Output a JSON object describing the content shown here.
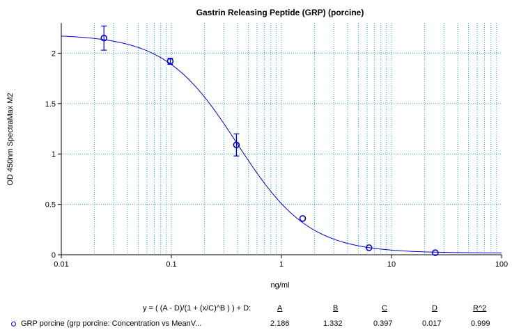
{
  "chart_data": {
    "type": "scatter",
    "title": "Gastrin Releasing Peptide (GRP) (porcine)",
    "xlabel": "ng/ml",
    "ylabel": "OD 450nm SpectraMax M2",
    "x_scale": "log",
    "xlim": [
      0.01,
      100
    ],
    "ylim": [
      0,
      2.3
    ],
    "x_ticks": [
      "0.01",
      "0.1",
      "1",
      "10",
      "100"
    ],
    "y_ticks": [
      "0",
      "0.5",
      "1",
      "1.5",
      "2"
    ],
    "grid": true,
    "series": [
      {
        "name": "GRP porcine (grp porcine: Concentration vs MeanV...",
        "color": "#0000cc",
        "x": [
          0.0244,
          0.0977,
          0.39,
          1.56,
          6.25,
          25
        ],
        "y": [
          2.15,
          1.92,
          1.09,
          0.36,
          0.07,
          0.02
        ],
        "err": [
          0.12,
          0.03,
          0.11,
          0.02,
          0.01,
          0.005
        ]
      }
    ],
    "fit": {
      "equation": "y = ( (A - D)/(1 + (x/C)^B ) ) + D:",
      "A": 2.186,
      "B": 1.332,
      "C": 0.397,
      "D": 0.017,
      "R2": 0.999
    }
  },
  "legend": {
    "equation": "y = ( (A - D)/(1 + (x/C)^B ) ) + D:",
    "headers": [
      "A",
      "B",
      "C",
      "D",
      "R^2"
    ],
    "row": {
      "label": "GRP porcine (grp porcine: Concentration vs MeanV...",
      "values": [
        "2.186",
        "1.332",
        "0.397",
        "0.017",
        "0.999"
      ]
    }
  }
}
